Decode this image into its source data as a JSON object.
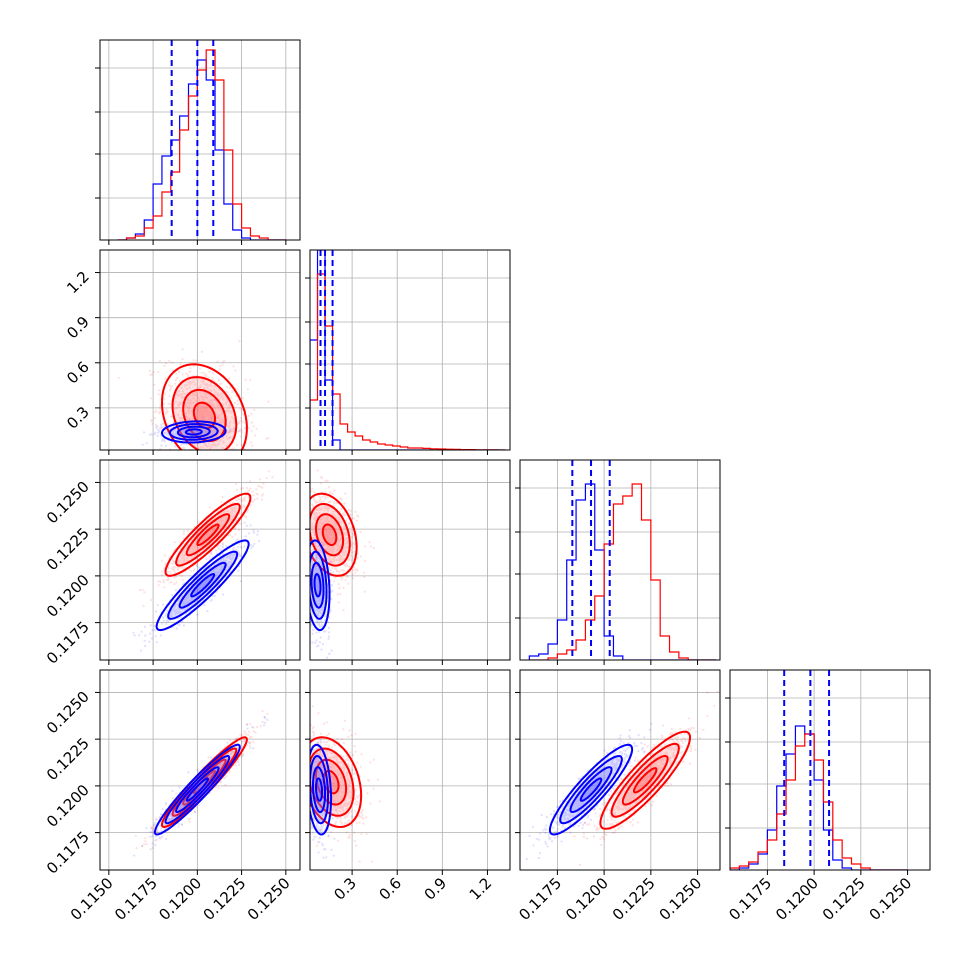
{
  "chart_data": {
    "type": "corner",
    "series": [
      {
        "name": "",
        "color": "#0000ff"
      },
      {
        "name": "",
        "color": "#ff0000"
      }
    ],
    "params": [
      {
        "range": [
          0.1145,
          0.1258
        ],
        "ticks": [
          "0.1150",
          "0.1175",
          "0.1200",
          "0.1225",
          "0.1250"
        ],
        "tick_values": [
          0.115,
          0.1175,
          0.12,
          0.1225,
          0.125
        ]
      },
      {
        "range": [
          0.02,
          1.35
        ],
        "ticks": [
          "0.3",
          "0.6",
          "0.9",
          "1.2"
        ],
        "tick_values": [
          0.3,
          0.6,
          0.9,
          1.2
        ]
      },
      {
        "range": [
          0.1155,
          0.1262
        ],
        "ticks": [
          "0.1175",
          "0.1200",
          "0.1225",
          "0.1250"
        ],
        "tick_values": [
          0.1175,
          0.12,
          0.1225,
          0.125
        ]
      },
      {
        "range": [
          0.1155,
          0.1262
        ],
        "ticks": [
          "0.1175",
          "0.1200",
          "0.1225",
          "0.1250"
        ],
        "tick_values": [
          0.1175,
          0.12,
          0.1225,
          0.125
        ]
      }
    ],
    "quantiles": [
      [
        0.11855,
        0.12,
        0.1209
      ],
      [
        0.09,
        0.12,
        0.17
      ],
      [
        0.1183,
        0.1193,
        0.1203
      ],
      [
        0.1184,
        0.1198,
        0.1208
      ]
    ],
    "histograms": [
      {
        "bin_edges": [
          0.1155,
          0.116,
          0.1165,
          0.117,
          0.1175,
          0.118,
          0.1185,
          0.119,
          0.1195,
          0.12,
          0.1205,
          0.121,
          0.1215,
          0.122,
          0.1225,
          0.123,
          0.1235,
          0.124,
          0.1245,
          0.125
        ],
        "blue": [
          0.0,
          0.01,
          0.03,
          0.1,
          0.28,
          0.42,
          0.5,
          0.62,
          0.78,
          0.9,
          0.8,
          0.45,
          0.18,
          0.05,
          0.01,
          0,
          0,
          0,
          0
        ],
        "red": [
          0.0,
          0.01,
          0.02,
          0.06,
          0.12,
          0.24,
          0.34,
          0.55,
          0.72,
          0.85,
          0.95,
          0.8,
          0.45,
          0.18,
          0.06,
          0.02,
          0.01,
          0,
          0
        ]
      },
      {
        "bin_edges": [
          0.02,
          0.07,
          0.12,
          0.17,
          0.22,
          0.27,
          0.32,
          0.37,
          0.42,
          0.47,
          0.52,
          0.57,
          0.62,
          0.67,
          0.72,
          0.77,
          0.82,
          0.87,
          0.92,
          0.97,
          1.02,
          1.07,
          1.12,
          1.17,
          1.22,
          1.27,
          1.32
        ],
        "blue": [
          0.55,
          1.0,
          0.35,
          0.05,
          0,
          0,
          0,
          0,
          0,
          0,
          0,
          0,
          0,
          0,
          0,
          0,
          0,
          0,
          0,
          0,
          0,
          0,
          0,
          0,
          0,
          0
        ],
        "red": [
          0.25,
          0.88,
          0.62,
          0.28,
          0.13,
          0.09,
          0.07,
          0.05,
          0.04,
          0.03,
          0.025,
          0.02,
          0.015,
          0.01,
          0.01,
          0.008,
          0.006,
          0.005,
          0.004,
          0.003,
          0.002,
          0.002,
          0.001,
          0.001,
          0.001,
          0
        ]
      },
      {
        "bin_edges": [
          0.116,
          0.1165,
          0.117,
          0.1175,
          0.118,
          0.1185,
          0.119,
          0.1195,
          0.12,
          0.1205,
          0.121,
          0.1215,
          0.122,
          0.1225,
          0.123,
          0.1235,
          0.124,
          0.1245,
          0.125,
          0.1255,
          0.126
        ],
        "blue": [
          0.02,
          0.03,
          0.08,
          0.2,
          0.5,
          0.8,
          0.88,
          0.55,
          0.12,
          0.02,
          0,
          0,
          0,
          0,
          0,
          0,
          0,
          0,
          0,
          0
        ],
        "red": [
          0,
          0,
          0.01,
          0.03,
          0.05,
          0.1,
          0.2,
          0.32,
          0.58,
          0.78,
          0.82,
          0.88,
          0.7,
          0.4,
          0.12,
          0.04,
          0.01,
          0,
          0,
          0
        ]
      },
      {
        "bin_edges": [
          0.1155,
          0.116,
          0.1165,
          0.117,
          0.1175,
          0.118,
          0.1185,
          0.119,
          0.1195,
          0.12,
          0.1205,
          0.121,
          0.1215,
          0.122,
          0.1225,
          0.123,
          0.1235,
          0.124,
          0.1245,
          0.125
        ],
        "blue": [
          0,
          0.01,
          0.03,
          0.08,
          0.2,
          0.42,
          0.58,
          0.72,
          0.68,
          0.45,
          0.2,
          0.05,
          0.01,
          0,
          0,
          0,
          0,
          0,
          0
        ],
        "red": [
          0.01,
          0.02,
          0.04,
          0.09,
          0.15,
          0.28,
          0.45,
          0.62,
          0.68,
          0.55,
          0.34,
          0.15,
          0.06,
          0.03,
          0.01,
          0,
          0,
          0,
          0
        ]
      }
    ],
    "pairs": [
      {
        "row": 1,
        "col": 0,
        "blue": {
          "mean": [
            0.1198,
            0.14
          ],
          "sd": [
            0.0009,
            0.035
          ],
          "rho": 0.1
        },
        "red": {
          "mean": [
            0.1204,
            0.25
          ],
          "sd": [
            0.0012,
            0.17
          ],
          "rho": -0.25
        }
      },
      {
        "row": 2,
        "col": 0,
        "blue": {
          "mean": [
            0.1203,
            0.1195
          ],
          "sd": [
            0.0013,
            0.0012
          ],
          "rho": 0.92
        },
        "red": {
          "mean": [
            0.1206,
            0.1222
          ],
          "sd": [
            0.0012,
            0.0011
          ],
          "rho": 0.9
        }
      },
      {
        "row": 2,
        "col": 1,
        "blue": {
          "mean": [
            0.07,
            0.1195
          ],
          "sd": [
            0.04,
            0.0012
          ],
          "rho": -0.2
        },
        "red": {
          "mean": [
            0.15,
            0.1222
          ],
          "sd": [
            0.09,
            0.0011
          ],
          "rho": -0.3
        }
      },
      {
        "row": 3,
        "col": 0,
        "blue": {
          "mean": [
            0.12,
            0.1198
          ],
          "sd": [
            0.0012,
            0.0012
          ],
          "rho": 0.95
        },
        "red": {
          "mean": [
            0.1204,
            0.1202
          ],
          "sd": [
            0.0012,
            0.0012
          ],
          "rho": 0.95
        }
      },
      {
        "row": 3,
        "col": 1,
        "blue": {
          "mean": [
            0.08,
            0.1198
          ],
          "sd": [
            0.04,
            0.0012
          ],
          "rho": -0.2
        },
        "red": {
          "mean": [
            0.16,
            0.1202
          ],
          "sd": [
            0.1,
            0.0012
          ],
          "rho": -0.3
        }
      },
      {
        "row": 3,
        "col": 2,
        "blue": {
          "mean": [
            0.1193,
            0.1198
          ],
          "sd": [
            0.0011,
            0.0012
          ],
          "rho": 0.9
        },
        "red": {
          "mean": [
            0.1222,
            0.1203
          ],
          "sd": [
            0.0012,
            0.0013
          ],
          "rho": 0.88
        }
      }
    ],
    "grid": true
  }
}
